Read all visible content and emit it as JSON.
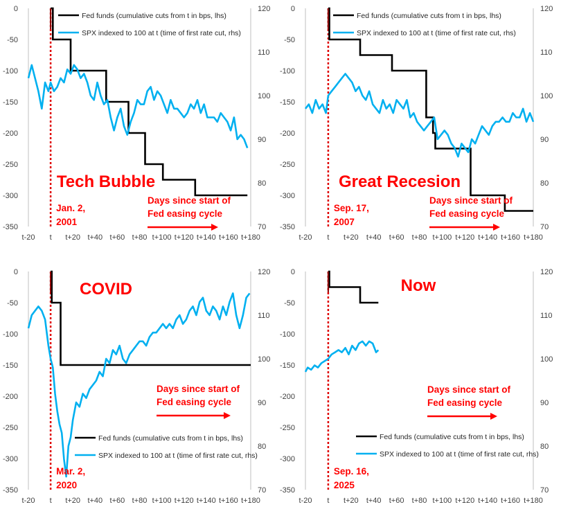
{
  "colors": {
    "fed": "#000000",
    "spx": "#00b0f0",
    "marker": "#e00000",
    "axis": "#bfbfbf",
    "tick": "#404040"
  },
  "shared": {
    "legend_fed": "Fed funds (cumulative cuts from t in bps, lhs)",
    "legend_spx": "SPX indexed to 100 at t (time of first rate cut, rhs)",
    "arrow_line1": "Days since start of",
    "arrow_line2": "Fed easing cycle"
  },
  "chart_data": [
    {
      "type": "line",
      "title": "Tech Bubble",
      "date_line1": "Jan. 2,",
      "date_line2": "2001",
      "x_range": [
        -20,
        180
      ],
      "x_ticks": [
        "t-20",
        "t",
        "t+20",
        "t+40",
        "t+60",
        "t+80",
        "t+100",
        "t+120",
        "t+140",
        "t+160",
        "t+180"
      ],
      "x_tick_values": [
        -20,
        0,
        20,
        40,
        60,
        80,
        100,
        120,
        140,
        160,
        180
      ],
      "ylim_left": [
        -350,
        0
      ],
      "y_ticks_left": [
        "0",
        "-50",
        "-100",
        "-150",
        "-200",
        "-250",
        "-300",
        "-350"
      ],
      "ylim_right": [
        70,
        120
      ],
      "y_ticks_right": [
        "120",
        "110",
        "100",
        "90",
        "80",
        "70"
      ],
      "series": [
        {
          "name": "Fed funds (cumulative cuts from t in bps, lhs)",
          "axis": "left",
          "step": true,
          "x": [
            0,
            2,
            18,
            50,
            70,
            85,
            101,
            130,
            150,
            165,
            177
          ],
          "y": [
            0,
            -50,
            -100,
            -150,
            -200,
            -250,
            -275,
            -300,
            -300,
            -300,
            -300
          ]
        },
        {
          "name": "SPX indexed to 100 at t (time of first rate cut, rhs)",
          "axis": "right",
          "x": [
            -20,
            -17,
            -14,
            -11,
            -8,
            -5,
            -2,
            0,
            3,
            6,
            9,
            12,
            15,
            18,
            21,
            24,
            27,
            30,
            33,
            36,
            39,
            42,
            45,
            48,
            51,
            54,
            57,
            60,
            63,
            66,
            69,
            72,
            75,
            78,
            81,
            84,
            87,
            90,
            93,
            96,
            99,
            102,
            105,
            108,
            111,
            114,
            117,
            120,
            123,
            126,
            129,
            132,
            135,
            138,
            141,
            144,
            147,
            150,
            153,
            156,
            159,
            162,
            165,
            168,
            171,
            174,
            177
          ],
          "y": [
            104,
            107,
            104,
            101,
            97,
            103,
            101,
            103,
            101,
            102,
            104,
            103,
            106,
            105,
            107,
            106,
            104,
            105,
            103,
            100,
            99,
            103,
            100,
            98,
            99,
            95,
            92,
            95,
            97,
            93,
            91,
            94,
            96,
            99,
            98,
            98,
            101,
            102,
            99,
            101,
            100,
            98,
            96,
            99,
            97,
            97,
            96,
            95,
            96,
            98,
            97,
            99,
            96,
            98,
            95,
            95,
            95,
            94,
            96,
            95,
            94,
            92,
            95,
            90,
            91,
            90,
            88
          ]
        }
      ]
    },
    {
      "type": "line",
      "title": "Great Recesion",
      "date_line1": "Sep. 17,",
      "date_line2": "2007",
      "x_range": [
        -20,
        180
      ],
      "x_ticks": [
        "t-20",
        "t",
        "t+20",
        "t+40",
        "t+60",
        "t+80",
        "t+100",
        "t+120",
        "t+140",
        "t+160",
        "t+180"
      ],
      "x_tick_values": [
        -20,
        0,
        20,
        40,
        60,
        80,
        100,
        120,
        140,
        160,
        180
      ],
      "ylim_left": [
        -350,
        0
      ],
      "y_ticks_left": [
        "0",
        "-50",
        "-100",
        "-150",
        "-200",
        "-250",
        "-300",
        "-350"
      ],
      "ylim_right": [
        70,
        120
      ],
      "y_ticks_right": [
        "120",
        "110",
        "100",
        "90",
        "80",
        "70"
      ],
      "series": [
        {
          "name": "Fed funds (cumulative cuts from t in bps, lhs)",
          "axis": "left",
          "step": true,
          "x": [
            0,
            1,
            28,
            56,
            86,
            92,
            94,
            125,
            155,
            170,
            180
          ],
          "y": [
            0,
            -50,
            -75,
            -100,
            -175,
            -200,
            -225,
            -300,
            -325,
            -325,
            -325
          ]
        },
        {
          "name": "SPX indexed to 100 at t (time of first rate cut, rhs)",
          "axis": "right",
          "x": [
            -20,
            -17,
            -14,
            -11,
            -8,
            -5,
            -2,
            0,
            3,
            6,
            9,
            12,
            15,
            18,
            21,
            24,
            27,
            30,
            33,
            36,
            39,
            42,
            45,
            48,
            51,
            54,
            57,
            60,
            63,
            66,
            69,
            72,
            75,
            78,
            81,
            84,
            87,
            90,
            93,
            96,
            99,
            102,
            105,
            108,
            111,
            114,
            117,
            120,
            123,
            126,
            129,
            132,
            135,
            138,
            141,
            144,
            147,
            150,
            153,
            156,
            159,
            162,
            165,
            168,
            171,
            174,
            177,
            180
          ],
          "y": [
            97,
            98,
            96,
            99,
            97,
            98,
            96,
            100,
            101,
            102,
            103,
            104,
            105,
            104,
            103,
            101,
            102,
            100,
            99,
            101,
            98,
            97,
            96,
            99,
            97,
            98,
            96,
            99,
            98,
            97,
            99,
            95,
            96,
            94,
            93,
            92,
            93,
            94,
            95,
            90,
            91,
            92,
            91,
            89,
            88,
            86,
            89,
            88,
            87,
            90,
            89,
            91,
            93,
            92,
            91,
            93,
            94,
            94,
            95,
            94,
            94,
            96,
            95,
            95,
            97,
            94,
            96,
            94
          ]
        }
      ]
    },
    {
      "type": "line",
      "title": "COVID",
      "date_line1": "Mar. 2,",
      "date_line2": "2020",
      "x_range": [
        -20,
        180
      ],
      "x_ticks": [
        "t-20",
        "t",
        "t+20",
        "t+40",
        "t+60",
        "t+80",
        "t+100",
        "t+120",
        "t+140",
        "t+160",
        "t+180"
      ],
      "x_tick_values": [
        -20,
        0,
        20,
        40,
        60,
        80,
        100,
        120,
        140,
        160,
        180
      ],
      "ylim_left": [
        -350,
        0
      ],
      "y_ticks_left": [
        "0",
        "-50",
        "-100",
        "-150",
        "-200",
        "-250",
        "-300",
        "-350"
      ],
      "ylim_right": [
        70,
        120
      ],
      "y_ticks_right": [
        "120",
        "110",
        "100",
        "90",
        "80",
        "70"
      ],
      "series": [
        {
          "name": "Fed funds (cumulative cuts from t in bps, lhs)",
          "axis": "left",
          "step": true,
          "x": [
            0,
            1,
            9,
            180
          ],
          "y": [
            0,
            -50,
            -150,
            -150
          ]
        },
        {
          "name": "SPX indexed to 100 at t (time of first rate cut, rhs)",
          "axis": "right",
          "x": [
            -20,
            -17,
            -14,
            -11,
            -8,
            -5,
            -2,
            0,
            2,
            4,
            6,
            8,
            10,
            12,
            14,
            16,
            18,
            20,
            23,
            26,
            29,
            32,
            35,
            38,
            41,
            44,
            47,
            50,
            53,
            56,
            59,
            62,
            65,
            68,
            71,
            74,
            77,
            80,
            83,
            86,
            89,
            92,
            95,
            98,
            101,
            104,
            107,
            110,
            113,
            116,
            119,
            122,
            125,
            128,
            131,
            134,
            137,
            140,
            143,
            146,
            149,
            152,
            155,
            158,
            161,
            164,
            167,
            170,
            173,
            176,
            179
          ],
          "y": [
            107,
            110,
            111,
            112,
            111,
            109,
            103,
            100,
            98,
            92,
            88,
            85,
            83,
            77,
            73,
            80,
            82,
            86,
            90,
            89,
            92,
            91,
            93,
            94,
            95,
            97,
            96,
            100,
            99,
            102,
            101,
            103,
            100,
            99,
            101,
            102,
            103,
            104,
            104,
            103,
            105,
            106,
            106,
            107,
            108,
            107,
            108,
            107,
            109,
            110,
            108,
            109,
            111,
            112,
            110,
            113,
            114,
            111,
            110,
            112,
            111,
            109,
            112,
            110,
            113,
            115,
            110,
            107,
            110,
            114,
            115
          ]
        }
      ]
    },
    {
      "type": "line",
      "title": "Now",
      "date_line1": "Sep. 16,",
      "date_line2": "2025",
      "x_range": [
        -20,
        180
      ],
      "x_ticks": [
        "t-20",
        "t",
        "t+20",
        "t+40",
        "t+60",
        "t+80",
        "t+100",
        "t+120",
        "t+140",
        "t+160",
        "t+180"
      ],
      "x_tick_values": [
        -20,
        0,
        20,
        40,
        60,
        80,
        100,
        120,
        140,
        160,
        180
      ],
      "ylim_left": [
        -350,
        0
      ],
      "y_ticks_left": [
        "0",
        "-50",
        "-100",
        "-150",
        "-200",
        "-250",
        "-300",
        "-350"
      ],
      "ylim_right": [
        70,
        120
      ],
      "y_ticks_right": [
        "120",
        "110",
        "100",
        "90",
        "80",
        "70"
      ],
      "series": [
        {
          "name": "Fed funds (cumulative cuts from t in bps, lhs)",
          "axis": "left",
          "step": true,
          "x": [
            0,
            1,
            28,
            44
          ],
          "y": [
            0,
            -25,
            -50,
            -50
          ]
        },
        {
          "name": "SPX indexed to 100 at t (time of first rate cut, rhs)",
          "axis": "right",
          "x": [
            -20,
            -18,
            -15,
            -12,
            -9,
            -6,
            -3,
            0,
            3,
            6,
            9,
            12,
            15,
            18,
            21,
            24,
            27,
            30,
            33,
            36,
            39,
            42,
            44
          ],
          "y": [
            97,
            98,
            97.5,
            98.5,
            98,
            99,
            99.5,
            100,
            101,
            101.5,
            102,
            101.5,
            102.5,
            101,
            103,
            102,
            103.5,
            104,
            103,
            104,
            103.5,
            101.5,
            102
          ]
        }
      ]
    }
  ]
}
